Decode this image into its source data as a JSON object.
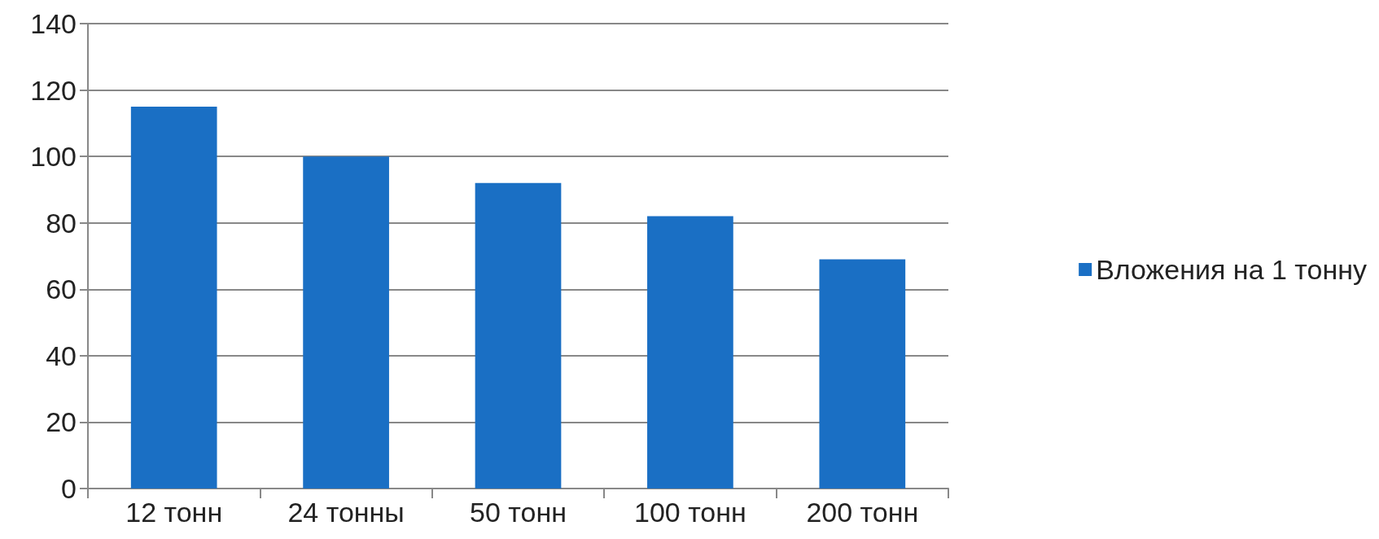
{
  "chart_data": {
    "type": "bar",
    "categories": [
      "12 тонн",
      "24 тонны",
      "50 тонн",
      "100 тонн",
      "200 тонн"
    ],
    "series": [
      {
        "name": "Вложения на 1 тонну",
        "color": "#1a6fc4",
        "values": [
          115,
          100,
          92,
          82,
          69
        ]
      }
    ],
    "ylim": [
      0,
      140
    ],
    "yticks": [
      0,
      20,
      40,
      60,
      80,
      100,
      120,
      140
    ],
    "grid": "y",
    "legend": "right"
  }
}
